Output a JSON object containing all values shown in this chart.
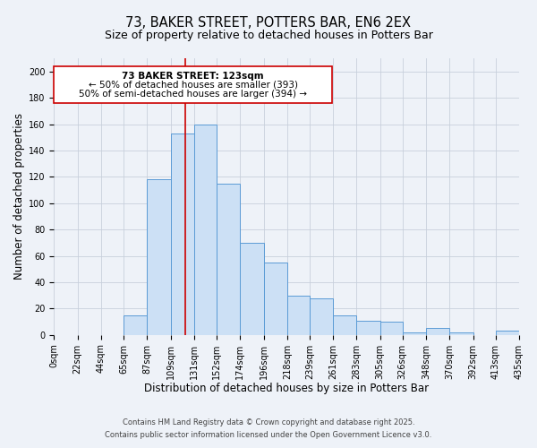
{
  "title": "73, BAKER STREET, POTTERS BAR, EN6 2EX",
  "subtitle": "Size of property relative to detached houses in Potters Bar",
  "xlabel": "Distribution of detached houses by size in Potters Bar",
  "ylabel": "Number of detached properties",
  "footnote1": "Contains HM Land Registry data © Crown copyright and database right 2025.",
  "footnote2": "Contains public sector information licensed under the Open Government Licence v3.0.",
  "bin_labels": [
    "0sqm",
    "22sqm",
    "44sqm",
    "65sqm",
    "87sqm",
    "109sqm",
    "131sqm",
    "152sqm",
    "174sqm",
    "196sqm",
    "218sqm",
    "239sqm",
    "261sqm",
    "283sqm",
    "305sqm",
    "326sqm",
    "348sqm",
    "370sqm",
    "392sqm",
    "413sqm",
    "435sqm"
  ],
  "bin_edges": [
    0,
    22,
    44,
    65,
    87,
    109,
    131,
    152,
    174,
    196,
    218,
    239,
    261,
    283,
    305,
    326,
    348,
    370,
    392,
    413,
    435
  ],
  "bar_heights": [
    0,
    0,
    0,
    15,
    118,
    153,
    160,
    115,
    70,
    55,
    30,
    28,
    15,
    11,
    10,
    2,
    5,
    2,
    0,
    3,
    0
  ],
  "bar_color": "#cce0f5",
  "bar_edge_color": "#5b9bd5",
  "grid_color": "#c8d0dc",
  "background_color": "#eef2f8",
  "ylim": [
    0,
    210
  ],
  "yticks": [
    0,
    20,
    40,
    60,
    80,
    100,
    120,
    140,
    160,
    180,
    200
  ],
  "property_line_x": 123,
  "annotation_title": "73 BAKER STREET: 123sqm",
  "annotation_line1": "← 50% of detached houses are smaller (393)",
  "annotation_line2": "50% of semi-detached houses are larger (394) →",
  "annotation_box_color": "#ffffff",
  "annotation_border_color": "#cc0000",
  "red_line_color": "#cc0000",
  "title_fontsize": 10.5,
  "subtitle_fontsize": 9,
  "axis_label_fontsize": 8.5,
  "tick_fontsize": 7,
  "annotation_fontsize": 7.5,
  "footnote_fontsize": 6
}
